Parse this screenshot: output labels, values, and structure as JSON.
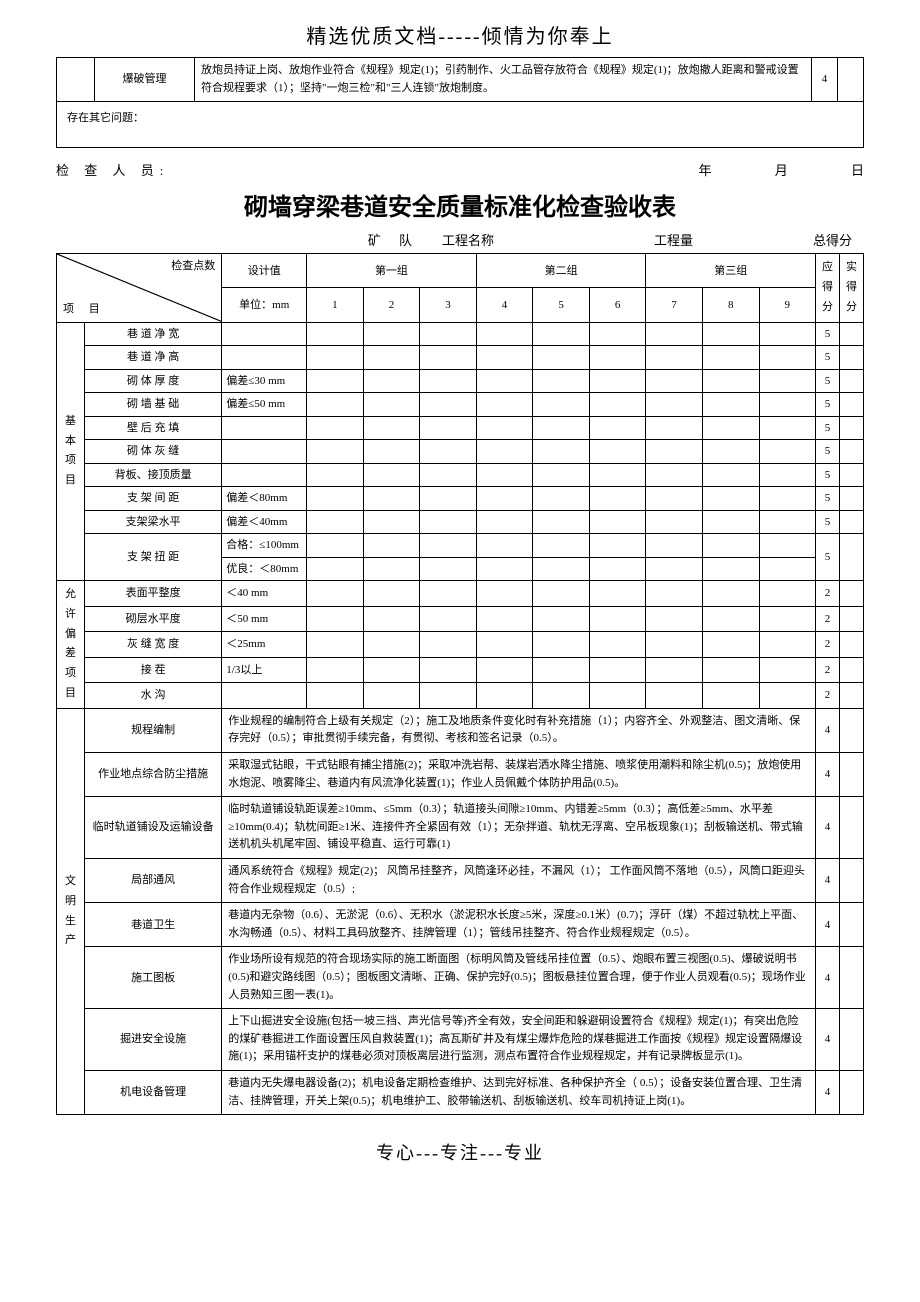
{
  "header": "精选优质文档-----倾情为你奉上",
  "footer": "专心---专注---专业",
  "topTable": {
    "row1": {
      "label": "爆破管理",
      "text": "放炮员持证上岗、放炮作业符合《规程》规定(1)；引药制作、火工品管存放符合《规程》规定(1)；放炮撤人距离和警戒设置符合规程要求（1）；坚持\"一炮三检\"和\"三人连锁\"放炮制度。",
      "score": "4"
    },
    "row2": {
      "label": "存在其它问题："
    }
  },
  "inspector": {
    "label": "检 查 人 员:",
    "year": "年",
    "month": "月",
    "day": "日"
  },
  "title": "砌墙穿梁巷道安全质量标准化检查验收表",
  "meta": {
    "mine": "矿",
    "team": "队",
    "project": "工程名称",
    "qty": "工程量",
    "total": "总得分"
  },
  "headers": {
    "checkPoints": "检查点数",
    "item": "项  目",
    "design": "设计值",
    "unit": "单位：mm",
    "g1": "第一组",
    "g2": "第二组",
    "g3": "第三组",
    "should": "应得分",
    "actual": "实得分",
    "n": [
      "1",
      "2",
      "3",
      "4",
      "5",
      "6",
      "7",
      "8",
      "9"
    ]
  },
  "cat1": {
    "label": "基本项目",
    "rows": [
      {
        "name": "巷 道 净 宽",
        "design": "",
        "score": "5"
      },
      {
        "name": "巷 道 净 高",
        "design": "",
        "score": "5"
      },
      {
        "name": "砌 体 厚 度",
        "design": "偏差≤30 mm",
        "score": "5"
      },
      {
        "name": "砌 墙 基 础",
        "design": "偏差≤50 mm",
        "score": "5"
      },
      {
        "name": "壁 后 充 填",
        "design": "",
        "score": "5"
      },
      {
        "name": "砌 体 灰 缝",
        "design": "",
        "score": "5"
      },
      {
        "name": "背板、接顶质量",
        "design": "",
        "score": "5"
      },
      {
        "name": "支 架 间 距",
        "design": "偏差＜80mm",
        "score": "5"
      },
      {
        "name": "支架梁水平",
        "design": "偏差＜40mm",
        "score": "5"
      }
    ],
    "twistRow": {
      "name": "支 架 扭 距",
      "design1": "合格：≤100mm",
      "design2": "优良：＜80mm",
      "score": "5"
    }
  },
  "cat2": {
    "label": "允许偏差项目",
    "rows": [
      {
        "name": "表面平整度",
        "design": "＜40 mm",
        "score": "2"
      },
      {
        "name": "砌层水平度",
        "design": "＜50 mm",
        "score": "2"
      },
      {
        "name": "灰 缝 宽 度",
        "design": "＜25mm",
        "score": "2"
      },
      {
        "name": "接        茬",
        "design": "1/3以上",
        "score": "2"
      },
      {
        "name": "水        沟",
        "design": "",
        "score": "2"
      }
    ]
  },
  "cat3": {
    "label": "文明生产",
    "rows": [
      {
        "name": "规程编制",
        "text": "作业规程的编制符合上级有关规定（2）；施工及地质条件变化时有补充措施（1）；内容齐全、外观整洁、图文清晰、保存完好（0.5）；审批贯彻手续完备，有贯彻、考核和签名记录（0.5）。",
        "score": "4"
      },
      {
        "name": "作业地点综合防尘措施",
        "text": "采取湿式钻眼，干式钻眼有捕尘措施(2)；采取冲洗岩帮、装煤岩洒水降尘措施、喷浆使用潮料和除尘机(0.5)；放炮使用水炮泥、喷雾降尘、巷道内有风流净化装置(1)；作业人员佩戴个体防护用品(0.5)。",
        "score": "4"
      },
      {
        "name": "临时轨道铺设及运输设备",
        "text": "临时轨道铺设轨距误差≥10mm、≤5mm（0.3）；轨道接头间隙≥10mm、内错差≥5mm（0.3）；高低差≥5mm、水平差≥10mm(0.4)；轨枕间距≥1米、连接件齐全紧固有效（1）；无杂拌道、轨枕无浮离、空吊板现象(1)；刮板输送机、带式输送机机头机尾牢固、铺设平稳直、运行可靠(1)",
        "score": "4"
      },
      {
        "name": "局部通风",
        "text": "通风系统符合《规程》规定(2)； 风筒吊挂整齐，风筒逢环必挂，不漏风（1）； 工作面风筒不落地（0.5），风筒口距迎头符合作业规程规定（0.5）;",
        "score": "4"
      },
      {
        "name": "巷道卫生",
        "text": "巷道内无杂物（0.6）、无淤泥（0.6）、无积水（淤泥积水长度≥5米，深度≥0.1米）(0.7)；浮矸（煤）不超过轨枕上平面、水沟畅通（0.5）、材料工具码放整齐、挂牌管理（1）；管线吊挂整齐、符合作业规程规定（0.5）。",
        "score": "4"
      },
      {
        "name": "施工图板",
        "text": "作业场所设有规范的符合现场实际的施工断面图（标明风筒及管线吊挂位置（0.5）、炮眼布置三视图(0.5)、爆破说明书(0.5)和避灾路线图（0.5）；图板图文清晰、正确、保护完好(0.5)；图板悬挂位置合理，便于作业人员观看(0.5)；现场作业人员熟知三图一表(1)。",
        "score": "4"
      },
      {
        "name": "掘进安全设施",
        "text": "上下山掘进安全设施(包括一坡三挡、声光信号等)齐全有效，安全间距和躲避硐设置符合《规程》规定(1)；有突出危险的煤矿巷掘进工作面设置压风自救装置(1)；高瓦斯矿井及有煤尘爆炸危险的煤巷掘进工作面按《规程》规定设置隔爆设施(1)；采用锚杆支护的煤巷必须对顶板离层进行监测，测点布置符合作业规程规定，并有记录牌板显示(1)。",
        "score": "4"
      },
      {
        "name": "机电设备管理",
        "text": "巷道内无失爆电器设备(2)；机电设备定期检查维护、达到完好标准、各种保护齐全（ 0.5）；设备安装位置合理、卫生清洁、挂牌管理，开关上架(0.5)；机电维护工、胶带输送机、刮板输送机、绞车司机持证上岗(1)。",
        "score": "4"
      }
    ]
  }
}
